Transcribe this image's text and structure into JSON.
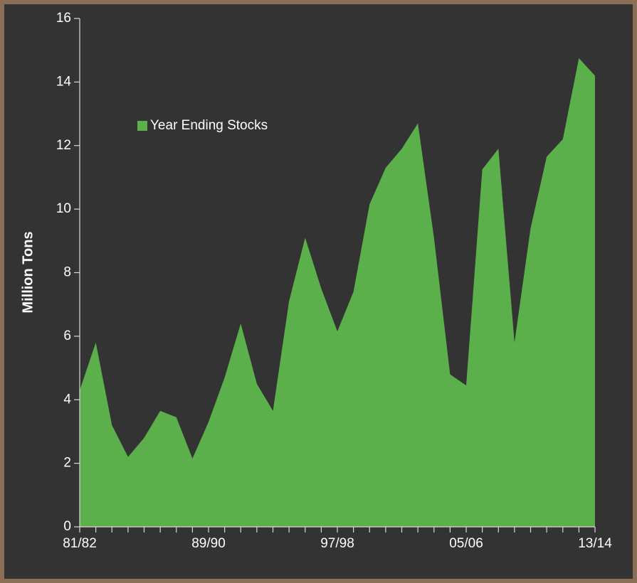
{
  "chart_data": {
    "type": "area",
    "y_label": "Million Tons",
    "categories": [
      "81/82",
      null,
      null,
      null,
      null,
      null,
      null,
      null,
      "89/90",
      null,
      null,
      null,
      null,
      null,
      null,
      null,
      "97/98",
      null,
      null,
      null,
      null,
      null,
      null,
      null,
      "05/06",
      null,
      null,
      null,
      null,
      null,
      null,
      null,
      "13/14"
    ],
    "series": [
      {
        "name": "Year Ending Stocks",
        "color": "#5cb04b",
        "values": [
          4.3,
          5.8,
          3.2,
          2.2,
          2.8,
          3.65,
          3.45,
          2.15,
          3.3,
          4.7,
          6.4,
          4.5,
          3.65,
          7.1,
          9.1,
          7.5,
          6.15,
          7.4,
          10.15,
          11.3,
          11.9,
          12.7,
          9.1,
          4.8,
          4.45,
          11.25,
          11.9,
          5.8,
          9.4,
          11.65,
          12.2,
          14.75,
          14.2
        ]
      }
    ],
    "ylim": [
      0,
      16
    ],
    "yticks": [
      0,
      2,
      4,
      6,
      8,
      10,
      12,
      14,
      16
    ],
    "legend": "upper left"
  }
}
